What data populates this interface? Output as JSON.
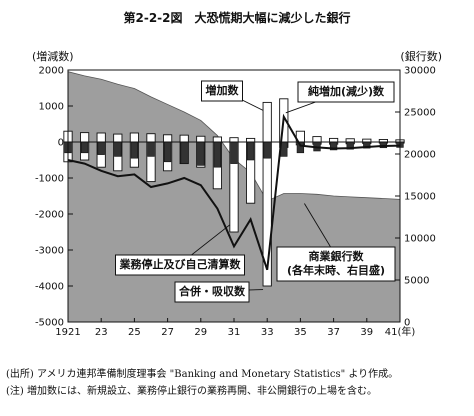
{
  "figure": {
    "title": "第2-2-2図　大恐慌期大幅に減少した銀行",
    "source_note": "(出所) アメリカ連邦準備制度理事会 \"Banking and Monetary Statistics\" より作成。",
    "note": "(注) 増加数には、新規設立、業務停止銀行の業務再開、非公開銀行の上場を含む。"
  },
  "chart_data": {
    "type": "bar",
    "years": [
      1921,
      1922,
      1923,
      1924,
      1925,
      1926,
      1927,
      1928,
      1929,
      1930,
      1931,
      1932,
      1933,
      1934,
      1935,
      1936,
      1937,
      1938,
      1939,
      1940,
      1941
    ],
    "x_tick_labels": [
      "1921",
      "23",
      "25",
      "27",
      "29",
      "31",
      "33",
      "35",
      "37",
      "39",
      "41(年)"
    ],
    "x_tick_years": [
      1921,
      1923,
      1925,
      1927,
      1929,
      1931,
      1933,
      1935,
      1937,
      1939,
      1941
    ],
    "left_axis": {
      "label": "(増減数)",
      "ylim": [
        -5000,
        2000
      ],
      "ticks": [
        2000,
        1000,
        0,
        -1000,
        -2000,
        -3000,
        -4000,
        -5000
      ]
    },
    "right_axis": {
      "label": "(銀行数)",
      "ylim": [
        0,
        30000
      ],
      "ticks": [
        30000,
        25000,
        20000,
        15000,
        10000,
        5000,
        0
      ]
    },
    "series": [
      {
        "name": "増加数",
        "style": "white_bar_above_zero",
        "values": [
          300,
          260,
          250,
          220,
          250,
          230,
          200,
          190,
          160,
          140,
          120,
          100,
          1100,
          1200,
          300,
          150,
          100,
          90,
          80,
          70,
          60
        ]
      },
      {
        "name": "業務停止及び自己清算数",
        "style": "white_bar_below",
        "values": [
          -550,
          -500,
          -700,
          -800,
          -700,
          -1100,
          -800,
          -600,
          -700,
          -1300,
          -2500,
          -1700,
          -4000,
          -150,
          -80,
          -60,
          -60,
          -50,
          -40,
          -30,
          -30
        ]
      },
      {
        "name": "合併・吸収数",
        "style": "dark_bar_below",
        "values": [
          -300,
          -300,
          -350,
          -400,
          -450,
          -400,
          -550,
          -600,
          -650,
          -700,
          -600,
          -500,
          -450,
          -400,
          -300,
          -250,
          -220,
          -200,
          -170,
          -160,
          -150
        ]
      },
      {
        "name": "純増加(減少)数",
        "style": "line_left_axis",
        "values": [
          -500,
          -600,
          -800,
          -950,
          -900,
          -1250,
          -1150,
          -1000,
          -1200,
          -1850,
          -2900,
          -2150,
          -3550,
          700,
          -100,
          -150,
          -180,
          -170,
          -140,
          -110,
          -100
        ]
      },
      {
        "name": "商業銀行数(各年末時、右目盛)",
        "style": "shaded_area_right_axis",
        "values": [
          29800,
          29300,
          28900,
          28300,
          27800,
          26800,
          25900,
          25000,
          24000,
          22200,
          19400,
          17800,
          14400,
          15300,
          15300,
          15200,
          15000,
          14900,
          14800,
          14700,
          14600
        ]
      }
    ],
    "annotations": [
      {
        "text": "増加数",
        "target_series": "増加数"
      },
      {
        "text": "純増加(減少)数",
        "target_series": "純増加(減少)数"
      },
      {
        "text": "業務停止及び自己清算数",
        "target_series": "業務停止及び自己清算数"
      },
      {
        "text": "合併・吸収数",
        "target_series": "合併・吸収数"
      },
      {
        "text": "商業銀行数\n(各年末時、右目盛)",
        "target_series": "商業銀行数(各年末時、右目盛)"
      }
    ],
    "colors": {
      "area": "#9e9e9e",
      "increase_bar": "#ffffff",
      "suspension_bar": "#ffffff",
      "merger_bar": "#333333",
      "line": "#111111"
    }
  }
}
